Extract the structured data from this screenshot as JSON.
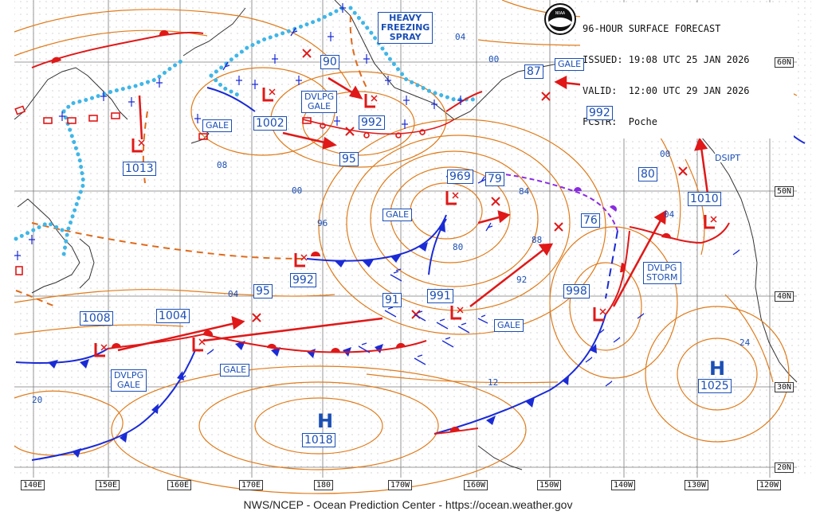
{
  "header": {
    "line1": "96-HOUR SURFACE FORECAST",
    "line2": "ISSUED: 19:08 UTC 25 JAN 2026",
    "line3": "VALID:  12:00 UTC 29 JAN 2026",
    "line4": "FCSTR:  Poche"
  },
  "footer": "NWS/NCEP - Ocean Prediction Center - https://ocean.weather.gov",
  "logo": "noaa-logo",
  "lat_labels": [
    "60N",
    "50N",
    "40N",
    "30N",
    "20N"
  ],
  "lon_labels": [
    "140E",
    "150E",
    "160E",
    "170E",
    "180",
    "170W",
    "160W",
    "150W",
    "140W",
    "130W",
    "120W"
  ],
  "warnings": {
    "heavy_freezing_spray": "HEAVY\nFREEZING\nSPRAY",
    "dvlpg_gale_n": "DVLPG\nGALE",
    "dvlpg_gale_w": "DVLPG\nGALE",
    "dvlpg_storm": "DVLPG\nSTORM",
    "gale_1": "GALE",
    "gale_2": "GALE",
    "gale_3": "GALE",
    "gale_4": "GALE",
    "gale_5": "GALE",
    "dsipt": "DSIPT"
  },
  "pressure_centers": [
    {
      "type": "L",
      "value": "1013"
    },
    {
      "type": "L",
      "value": "1002"
    },
    {
      "type": "L",
      "value": "992"
    },
    {
      "type": "L",
      "value": "969"
    },
    {
      "type": "L",
      "value": "992"
    },
    {
      "type": "L",
      "value": "991"
    },
    {
      "type": "L",
      "value": "998"
    },
    {
      "type": "L",
      "value": "1010"
    },
    {
      "type": "L",
      "value": "1008"
    },
    {
      "type": "L",
      "value": "1004"
    },
    {
      "type": "H",
      "value": "1018"
    },
    {
      "type": "H",
      "value": "1025"
    }
  ],
  "forecast_positions": [
    "90",
    "95",
    "87",
    "992",
    "80",
    "79",
    "76",
    "95",
    "91"
  ],
  "isobar_labels": [
    "04",
    "00",
    "08",
    "00",
    "96",
    "84",
    "80",
    "88",
    "92",
    "00",
    "04",
    "04",
    "12",
    "20",
    "24"
  ]
}
